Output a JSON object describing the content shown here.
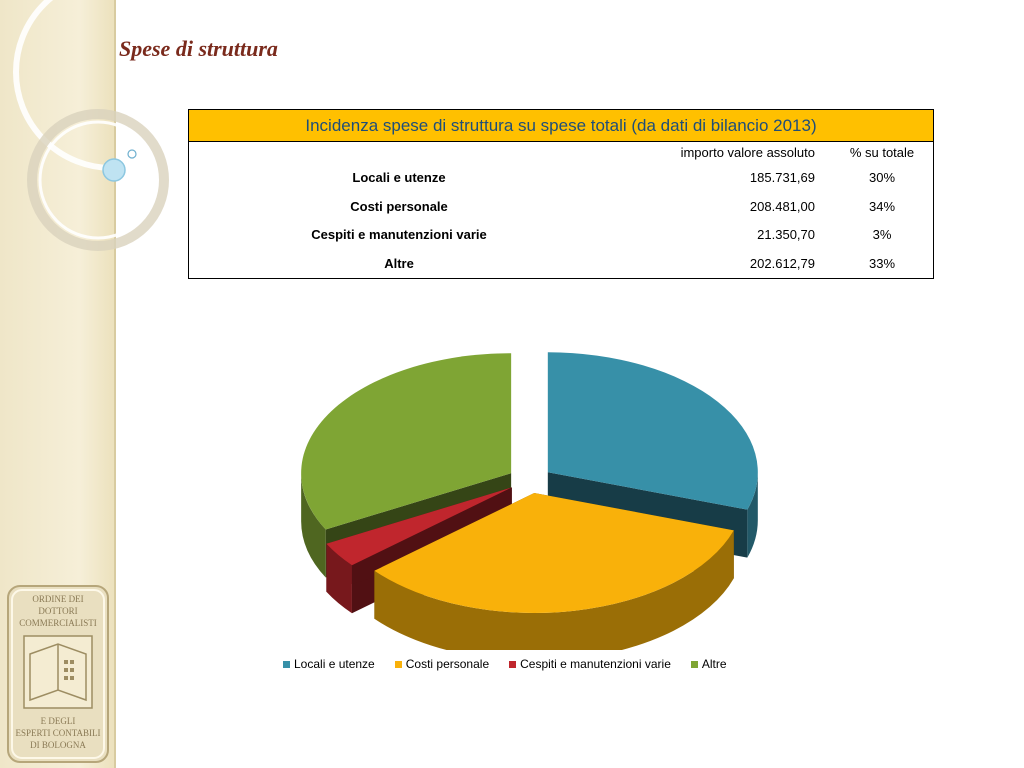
{
  "page": {
    "title": "Spese di struttura"
  },
  "table": {
    "caption": "Incidenza spese di struttura su spese totali (da dati di bilancio 2013)",
    "columns": [
      "importo valore assoluto",
      "% su totale"
    ],
    "rows": [
      {
        "label": "Locali e utenze",
        "value": "185.731,69",
        "pct": "30%"
      },
      {
        "label": "Costi personale",
        "value": "208.481,00",
        "pct": "34%"
      },
      {
        "label": "Cespiti e manutenzioni varie",
        "value": "21.350,70",
        "pct": "3%"
      },
      {
        "label": "Altre",
        "value": "202.612,79",
        "pct": "33%"
      }
    ]
  },
  "chart_data": {
    "type": "pie",
    "categories": [
      "Locali e utenze",
      "Costi personale",
      "Cespiti e manutenzioni varie",
      "Altre"
    ],
    "values": [
      185731.69,
      208481.0,
      21350.7,
      202612.79
    ],
    "colors": [
      "#3790a8",
      "#f9b10a",
      "#c0262d",
      "#7fa534"
    ],
    "legend_position": "bottom",
    "exploded": true,
    "style": "3d"
  },
  "logo": {
    "text": "Ordine dei Dottori Commercialisti e degli Esperti Contabili di Bologna"
  },
  "colors": {
    "title": "#7a2a1c",
    "table_header_bg": "#ffc000",
    "table_header_text": "#1f4e79"
  }
}
